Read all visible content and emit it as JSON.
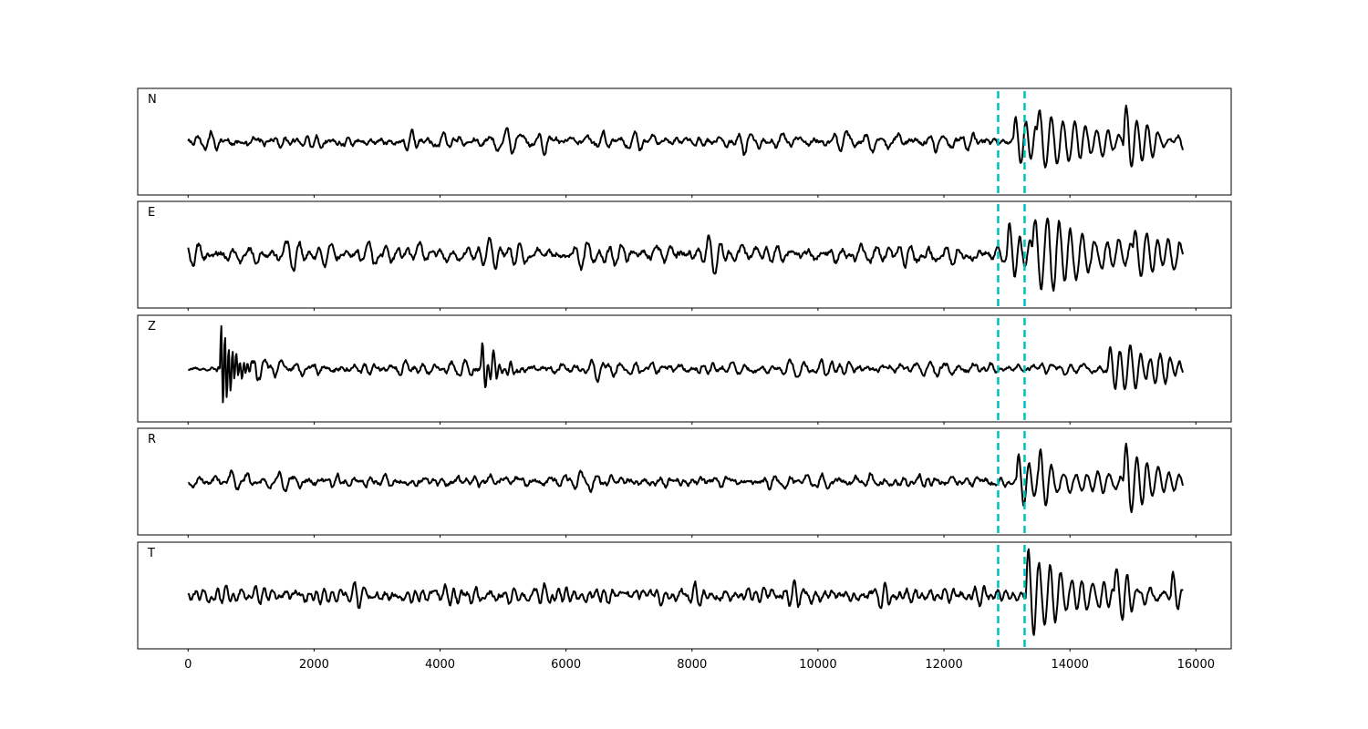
{
  "chart_data": {
    "type": "line",
    "title": "",
    "xlabel": "",
    "ylabel": "",
    "xlim": [
      -800,
      16560
    ],
    "x_ticks": [
      0,
      2000,
      4000,
      6000,
      8000,
      10000,
      12000,
      14000,
      16000
    ],
    "x_tick_labels": [
      "0",
      "2000",
      "4000",
      "6000",
      "8000",
      "10000",
      "12000",
      "14000",
      "16000"
    ],
    "grid": false,
    "legend": "none",
    "line_color": "#000000",
    "pick_color": "#00bfbf",
    "pick_lines_x": [
      12860,
      13280
    ],
    "panels": [
      {
        "label": "N",
        "samples": 15800,
        "noise_amp": 0.22,
        "noise_profile": [
          [
            0,
            1.0
          ],
          [
            12800,
            0.7
          ]
        ],
        "events": [
          {
            "x": 13100,
            "amp": 0.55,
            "period": 160,
            "decay": 500
          },
          {
            "x": 13480,
            "amp": 0.9,
            "period": 180,
            "decay": 700
          },
          {
            "x": 14850,
            "amp": 0.9,
            "period": 170,
            "decay": 450
          }
        ]
      },
      {
        "label": "E",
        "samples": 15800,
        "noise_amp": 0.28,
        "noise_profile": [
          [
            0,
            1.0
          ],
          [
            12800,
            0.8
          ]
        ],
        "events": [
          {
            "x": 13000,
            "amp": 0.5,
            "period": 160,
            "decay": 400
          },
          {
            "x": 13400,
            "amp": 0.95,
            "period": 190,
            "decay": 900
          },
          {
            "x": 15000,
            "amp": 0.6,
            "period": 180,
            "decay": 700
          }
        ]
      },
      {
        "label": "Z",
        "samples": 15800,
        "noise_amp": 0.2,
        "noise_profile": [
          [
            0,
            0.5
          ],
          [
            450,
            1.0
          ],
          [
            12800,
            0.9
          ]
        ],
        "events": [
          {
            "x": 510,
            "amp": 1.0,
            "period": 60,
            "decay": 180
          },
          {
            "x": 4650,
            "amp": 0.45,
            "period": 90,
            "decay": 250
          },
          {
            "x": 14600,
            "amp": 0.45,
            "period": 160,
            "decay": 900
          }
        ]
      },
      {
        "label": "R",
        "samples": 15800,
        "noise_amp": 0.22,
        "noise_profile": [
          [
            0,
            1.0
          ],
          [
            12800,
            0.75
          ]
        ],
        "events": [
          {
            "x": 13150,
            "amp": 0.6,
            "period": 160,
            "decay": 500
          },
          {
            "x": 13500,
            "amp": 0.55,
            "period": 180,
            "decay": 700
          },
          {
            "x": 14850,
            "amp": 0.95,
            "period": 170,
            "decay": 450
          }
        ]
      },
      {
        "label": "T",
        "samples": 15800,
        "noise_amp": 0.25,
        "noise_profile": [
          [
            0,
            1.0
          ],
          [
            12800,
            0.8
          ]
        ],
        "events": [
          {
            "x": 13300,
            "amp": 0.95,
            "period": 170,
            "decay": 800
          },
          {
            "x": 14700,
            "amp": 0.7,
            "period": 180,
            "decay": 500
          },
          {
            "x": 15600,
            "amp": 0.4,
            "period": 150,
            "decay": 300
          }
        ]
      }
    ]
  }
}
